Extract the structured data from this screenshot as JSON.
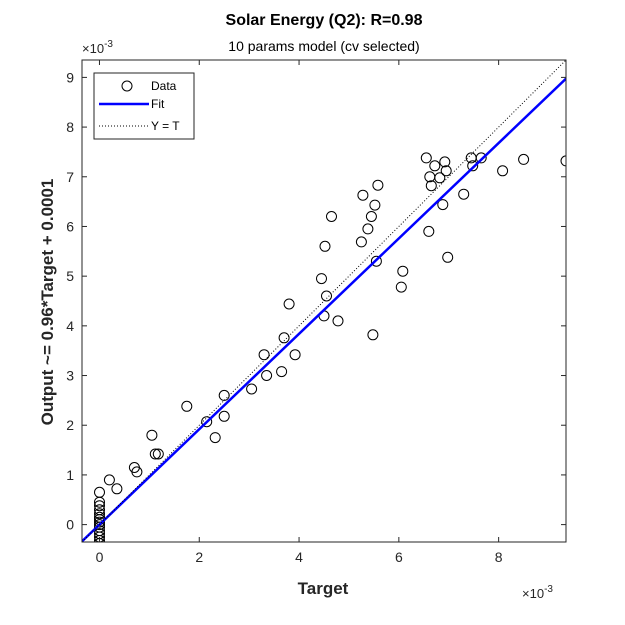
{
  "chart_data": {
    "type": "scatter",
    "title": "Solar Energy (Q2): R=0.98",
    "subtitle": "10 params model (cv selected)",
    "xlabel": "Target",
    "ylabel": "Output ~= 0.96*Target + 0.0001",
    "x_exponent_label": "×10",
    "x_exponent_power": "-3",
    "y_exponent_label": "×10",
    "y_exponent_power": "-3",
    "xlim": [
      -0.35,
      9.35
    ],
    "ylim": [
      -0.35,
      9.35
    ],
    "x_ticks": [
      "0",
      "2",
      "4",
      "6",
      "8"
    ],
    "y_ticks": [
      "0",
      "1",
      "2",
      "3",
      "4",
      "5",
      "6",
      "7",
      "8",
      "9"
    ],
    "grid": false,
    "legend": {
      "placement": "top-left",
      "entries": [
        "Data",
        "Fit",
        "Y = T"
      ]
    },
    "series": [
      {
        "name": "Data",
        "marker": "circle",
        "color": "#000000",
        "points": [
          [
            0,
            0.65
          ],
          [
            0,
            0.45
          ],
          [
            0,
            0.38
          ],
          [
            0,
            0.3
          ],
          [
            0,
            0.22
          ],
          [
            0,
            0.15
          ],
          [
            0,
            0.1
          ],
          [
            0,
            0.05
          ],
          [
            0,
            0.0
          ],
          [
            0,
            -0.05
          ],
          [
            0,
            -0.12
          ],
          [
            0,
            -0.18
          ],
          [
            0,
            -0.25
          ],
          [
            0,
            -0.32
          ],
          [
            0,
            -0.38
          ],
          [
            0.2,
            0.9
          ],
          [
            0.35,
            0.72
          ],
          [
            0.7,
            1.15
          ],
          [
            0.75,
            1.06
          ],
          [
            1.05,
            1.8
          ],
          [
            1.12,
            1.42
          ],
          [
            1.18,
            1.42
          ],
          [
            1.75,
            2.38
          ],
          [
            2.15,
            2.07
          ],
          [
            2.32,
            1.75
          ],
          [
            2.5,
            2.6
          ],
          [
            2.5,
            2.18
          ],
          [
            3.05,
            2.73
          ],
          [
            3.3,
            3.42
          ],
          [
            3.35,
            3.0
          ],
          [
            3.65,
            3.08
          ],
          [
            3.7,
            3.76
          ],
          [
            3.8,
            4.44
          ],
          [
            3.92,
            3.42
          ],
          [
            4.45,
            4.95
          ],
          [
            4.5,
            4.2
          ],
          [
            4.52,
            5.6
          ],
          [
            4.55,
            4.6
          ],
          [
            4.65,
            6.2
          ],
          [
            4.78,
            4.1
          ],
          [
            5.25,
            5.69
          ],
          [
            5.28,
            6.63
          ],
          [
            5.38,
            5.95
          ],
          [
            5.45,
            6.2
          ],
          [
            5.48,
            3.82
          ],
          [
            5.52,
            6.43
          ],
          [
            5.55,
            5.3
          ],
          [
            5.58,
            6.83
          ],
          [
            6.05,
            4.78
          ],
          [
            6.08,
            5.1
          ],
          [
            6.55,
            7.38
          ],
          [
            6.6,
            5.9
          ],
          [
            6.62,
            7.0
          ],
          [
            6.65,
            6.82
          ],
          [
            6.72,
            7.22
          ],
          [
            6.82,
            6.98
          ],
          [
            6.88,
            6.44
          ],
          [
            6.92,
            7.3
          ],
          [
            6.95,
            7.12
          ],
          [
            6.98,
            5.38
          ],
          [
            7.3,
            6.65
          ],
          [
            7.45,
            7.38
          ],
          [
            7.48,
            7.22
          ],
          [
            7.65,
            7.38
          ],
          [
            8.08,
            7.12
          ],
          [
            8.5,
            7.35
          ],
          [
            9.35,
            7.32
          ]
        ]
      },
      {
        "name": "Fit",
        "type": "line",
        "color": "#0000ff",
        "slope": 0.96,
        "intercept": 0.0001,
        "x": [
          -0.35,
          9.35
        ]
      },
      {
        "name": "Y = T",
        "type": "line",
        "style": "dotted",
        "color": "#000000",
        "x": [
          -0.35,
          9.35
        ],
        "y": [
          -0.35,
          9.35
        ]
      }
    ]
  }
}
